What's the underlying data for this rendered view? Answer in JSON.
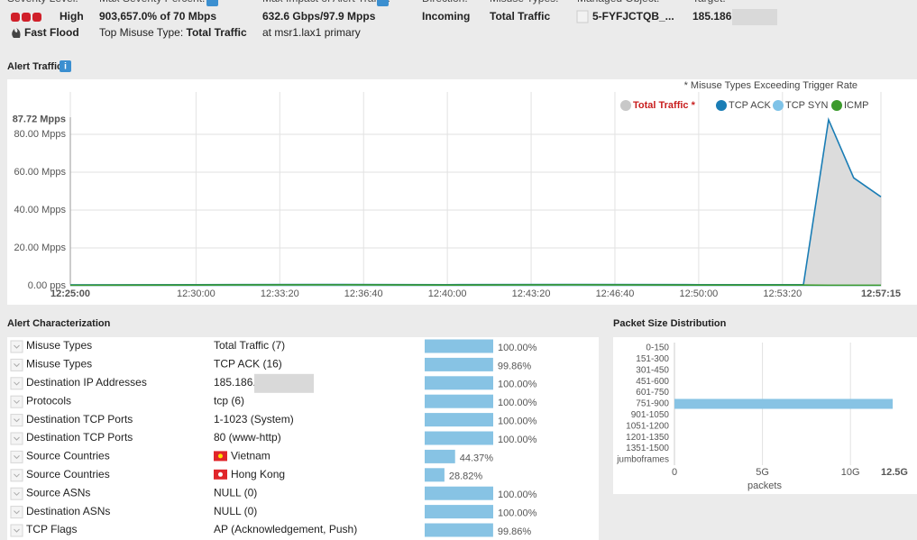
{
  "header": {
    "fields": [
      {
        "label": "Severity Level:",
        "value": "High",
        "detail": "Fast Flood"
      },
      {
        "label": "Max Severity Percent:",
        "value": "903,657.0% of 70 Mbps",
        "detail": "Top Misuse Type:",
        "detail_bold": "Total Traffic"
      },
      {
        "label": "Max Impact of Alert Traffic:",
        "value": "632.6 Gbps/97.9 Mpps",
        "detail": "at msr1.lax1 primary"
      },
      {
        "label": "Direction:",
        "value": "Incoming"
      },
      {
        "label": "Misuse Types:",
        "value": "Total Traffic"
      },
      {
        "label": "Managed Object:",
        "value": "5-FYFJCTQB_..."
      },
      {
        "label": "Target:",
        "value": "185.186"
      }
    ]
  },
  "chart_data": [
    {
      "type": "line",
      "title": "Alert Traffic",
      "note": "* Misuse Types Exceeding Trigger Rate",
      "x": [
        "12:25:00",
        "12:30:00",
        "12:35:00",
        "12:40:00",
        "12:45:00",
        "12:50:00",
        "12:54:10",
        "12:55:10",
        "12:56:10",
        "12:57:15"
      ],
      "series": [
        {
          "name": "Total Traffic *",
          "color": "#c8c8c8",
          "area": true,
          "values": [
            0.5,
            0.6,
            0.7,
            0.6,
            0.7,
            0.6,
            0.6,
            87.72,
            57,
            47
          ]
        },
        {
          "name": "TCP ACK",
          "color": "#1a7db5",
          "values": [
            0.5,
            0.6,
            0.7,
            0.6,
            0.7,
            0.6,
            0.6,
            87.72,
            57,
            47
          ]
        },
        {
          "name": "TCP SYN",
          "color": "#7fc3e8",
          "values": [
            0.2,
            0.2,
            0.2,
            0.2,
            0.2,
            0.2,
            0.2,
            0.2,
            0.2,
            0.2
          ]
        },
        {
          "name": "ICMP",
          "color": "#3c9a2c",
          "values": [
            0.3,
            0.4,
            0.5,
            0.4,
            0.5,
            0.4,
            0.4,
            0.3,
            0.3,
            0.3
          ]
        }
      ],
      "xlim": [
        "12:25:00",
        "12:57:15"
      ],
      "xticks": [
        "12:25:00",
        "12:30:00",
        "12:33:20",
        "12:36:40",
        "12:40:00",
        "12:43:20",
        "12:46:40",
        "12:50:00",
        "12:53:20",
        "12:57:15"
      ],
      "ylim": [
        0,
        102.4
      ],
      "yticks": [
        {
          "value": 0,
          "label": "0.00 pps"
        },
        {
          "value": 20,
          "label": "20.00 Mpps"
        },
        {
          "value": 40,
          "label": "40.00 Mpps"
        },
        {
          "value": 60,
          "label": "60.00 Mpps"
        },
        {
          "value": 80,
          "label": "80.00 Mpps"
        },
        {
          "value": 87.72,
          "label": "87.72 Mpps"
        }
      ],
      "grid": true
    },
    {
      "type": "barh",
      "title": "Packet Size Distribution",
      "categories": [
        "0-150",
        "151-300",
        "301-450",
        "451-600",
        "601-750",
        "751-900",
        "901-1050",
        "1051-1200",
        "1201-1350",
        "1351-1500",
        "jumboframes"
      ],
      "values": [
        0,
        0,
        0,
        0,
        0,
        12400000000,
        0,
        0,
        0,
        0,
        0
      ],
      "color": "#87c3e4",
      "xlabel": "packets",
      "xlim": [
        0,
        12500000000
      ],
      "xticks": [
        0,
        {
          "value": 5000000000,
          "label": "5G"
        },
        {
          "value": 10000000000,
          "label": "10G"
        },
        {
          "value": 12500000000,
          "label": "12.5G"
        }
      ],
      "grid": true
    }
  ],
  "characterization": {
    "title": "Alert Characterization",
    "xlim": [
      0,
      100
    ],
    "color": "#87c3e4",
    "rows": [
      {
        "type": "Misuse Types",
        "value": "Total Traffic (7)",
        "percent": 100,
        "percent_label": "100.00%"
      },
      {
        "type": "Misuse Types",
        "value": "TCP ACK (16)",
        "percent": 99.86,
        "percent_label": "99.86%"
      },
      {
        "type": "Destination IP Addresses",
        "value": "185.186.",
        "percent": 100,
        "percent_label": "100.00%"
      },
      {
        "type": "Protocols",
        "value": "tcp (6)",
        "percent": 100,
        "percent_label": "100.00%"
      },
      {
        "type": "Destination TCP Ports",
        "value": "1-1023 (System)",
        "percent": 100,
        "percent_label": "100.00%"
      },
      {
        "type": "Destination TCP Ports",
        "value": "80 (www-http)",
        "percent": 100,
        "percent_label": "100.00%"
      },
      {
        "type": "Source Countries",
        "value": "Vietnam",
        "percent": 44.37,
        "percent_label": "44.37%"
      },
      {
        "type": "Source Countries",
        "value": "Hong Kong",
        "percent": 28.82,
        "percent_label": "28.82%"
      },
      {
        "type": "Source ASNs",
        "value": "NULL (0)",
        "percent": 100,
        "percent_label": "100.00%"
      },
      {
        "type": "Destination ASNs",
        "value": "NULL (0)",
        "percent": 100,
        "percent_label": "100.00%"
      },
      {
        "type": "TCP Flags",
        "value": "AP (Acknowledgement, Push)",
        "percent": 99.86,
        "percent_label": "99.86%"
      }
    ]
  }
}
